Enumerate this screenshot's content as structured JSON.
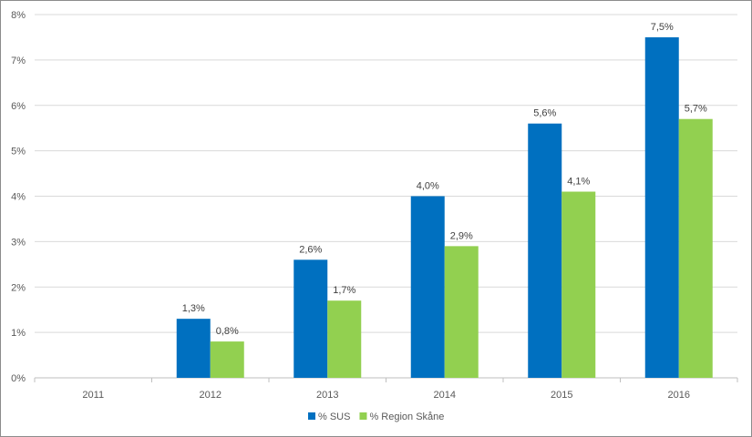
{
  "chart_data": {
    "type": "bar",
    "categories": [
      "2011",
      "2012",
      "2013",
      "2014",
      "2015",
      "2016"
    ],
    "series": [
      {
        "name": "% SUS",
        "color": "#0070C0",
        "values": [
          null,
          1.3,
          2.6,
          4.0,
          5.6,
          7.5
        ],
        "labels": [
          "",
          "1,3%",
          "2,6%",
          "4,0%",
          "5,6%",
          "7,5%"
        ]
      },
      {
        "name": "% Region Skåne",
        "color": "#92D050",
        "values": [
          null,
          0.8,
          1.7,
          2.9,
          4.1,
          5.7
        ],
        "labels": [
          "",
          "0,8%",
          "1,7%",
          "2,9%",
          "4,1%",
          "5,7%"
        ]
      }
    ],
    "ylim": [
      0,
      8
    ],
    "y_ticks": [
      "0%",
      "1%",
      "2%",
      "3%",
      "4%",
      "5%",
      "6%",
      "7%",
      "8%"
    ],
    "grid": true,
    "legend_position": "bottom"
  }
}
